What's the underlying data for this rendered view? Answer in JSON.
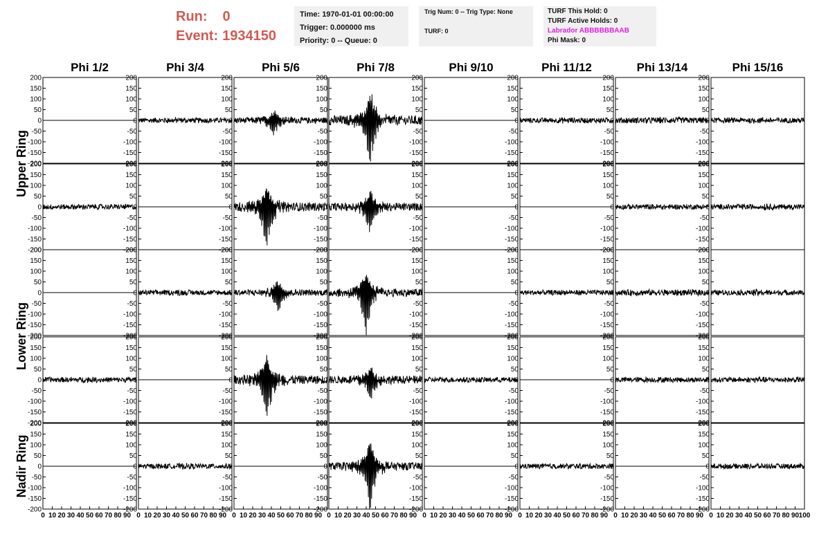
{
  "header": {
    "run_label": "Run:",
    "run_value": "0",
    "event_label": "Event:",
    "event_value": "1934150"
  },
  "info_boxes": {
    "time": "Time: 1970-01-01 00:00:00",
    "trigger": "Trigger: 0.000000 ms",
    "priority": "Priority: 0 -- Queue: 0",
    "trig_num": "Trig Num: 0 -- Trig Type: None",
    "turf": "TURF: 0",
    "turf_this_hold": "TURF This Hold: 0",
    "turf_active_holds": "TURF Active Holds: 0",
    "labrador": "Labrador ABBBBBBAAB",
    "phi_mask": "Phi Mask: 0"
  },
  "colors": {
    "run_text": "#d05a50",
    "labrador_text": "#e020e0",
    "box_bg": "#f0f0f0",
    "trace": "#000000"
  },
  "chart_data": {
    "type": "line",
    "columns": [
      "Phi 1/2",
      "Phi 3/4",
      "Phi 5/6",
      "Phi 7/8",
      "Phi 9/10",
      "Phi 11/12",
      "Phi 13/14",
      "Phi 15/16"
    ],
    "ring_labels": [
      "Upper Ring",
      "Lower Ring",
      "Nadir Ring"
    ],
    "rows_per_ring": [
      2,
      2,
      1
    ],
    "xlim": [
      0,
      100
    ],
    "ylim": [
      -200,
      200
    ],
    "x_tick_labels": [
      "0",
      "10",
      "20",
      "30",
      "40",
      "50",
      "60",
      "70",
      "80",
      "90",
      "100"
    ],
    "y_tick_labels": [
      "200",
      "150",
      "100",
      "50",
      "0",
      "-50",
      "-100",
      "-150",
      "-200"
    ],
    "grid": false,
    "panels": [
      [
        {
          "amp": 0,
          "peak": 0,
          "center": 50
        },
        {
          "amp": 12,
          "peak": 18,
          "center": 40
        },
        {
          "amp": 14,
          "peak": 70,
          "center": 43
        },
        {
          "amp": 22,
          "peak": 200,
          "center": 44
        },
        {
          "amp": 0,
          "peak": 0,
          "center": 50
        },
        {
          "amp": 12,
          "peak": 18,
          "center": 50
        },
        {
          "amp": 14,
          "peak": 18,
          "center": 50
        },
        {
          "amp": 12,
          "peak": 20,
          "center": 50
        }
      ],
      [
        {
          "amp": 12,
          "peak": 16,
          "center": 50
        },
        {
          "amp": 0,
          "peak": 0,
          "center": 50
        },
        {
          "amp": 20,
          "peak": 180,
          "center": 35
        },
        {
          "amp": 18,
          "peak": 110,
          "center": 44
        },
        {
          "amp": 0,
          "peak": 0,
          "center": 50
        },
        {
          "amp": 0,
          "peak": 0,
          "center": 50
        },
        {
          "amp": 12,
          "peak": 16,
          "center": 50
        },
        {
          "amp": 12,
          "peak": 22,
          "center": 60
        }
      ],
      [
        {
          "amp": 0,
          "peak": 0,
          "center": 50
        },
        {
          "amp": 12,
          "peak": 18,
          "center": 40
        },
        {
          "amp": 14,
          "peak": 80,
          "center": 47
        },
        {
          "amp": 18,
          "peak": 170,
          "center": 40
        },
        {
          "amp": 0,
          "peak": 0,
          "center": 50
        },
        {
          "amp": 12,
          "peak": 18,
          "center": 50
        },
        {
          "amp": 14,
          "peak": 20,
          "center": 50
        },
        {
          "amp": 12,
          "peak": 20,
          "center": 50
        }
      ],
      [
        {
          "amp": 12,
          "peak": 16,
          "center": 50
        },
        {
          "amp": 0,
          "peak": 0,
          "center": 50
        },
        {
          "amp": 20,
          "peak": 180,
          "center": 35
        },
        {
          "amp": 18,
          "peak": 90,
          "center": 44
        },
        {
          "amp": 12,
          "peak": 16,
          "center": 50
        },
        {
          "amp": 0,
          "peak": 0,
          "center": 50
        },
        {
          "amp": 12,
          "peak": 16,
          "center": 50
        },
        {
          "amp": 12,
          "peak": 18,
          "center": 50
        }
      ],
      [
        {
          "amp": 0,
          "peak": 0,
          "center": 50
        },
        {
          "amp": 12,
          "peak": 16,
          "center": 50
        },
        {
          "amp": 0,
          "peak": 0,
          "center": 50
        },
        {
          "amp": 18,
          "peak": 180,
          "center": 44
        },
        {
          "amp": 0,
          "peak": 0,
          "center": 50
        },
        {
          "amp": 12,
          "peak": 16,
          "center": 50
        },
        {
          "amp": 0,
          "peak": 0,
          "center": 50
        },
        {
          "amp": 12,
          "peak": 16,
          "center": 50
        }
      ]
    ]
  }
}
